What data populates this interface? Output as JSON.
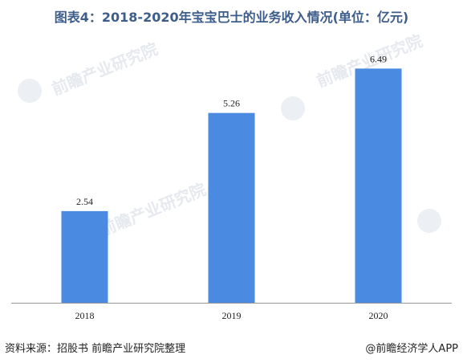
{
  "title": "图表4：2018-2020年宝宝巴士的业务收入情况(单位：亿元)",
  "footer": {
    "source": "资料来源：招股书 前瞻产业研究院整理",
    "brand": "@前瞻经济学人APP"
  },
  "watermark_text": "前瞻产业研究院",
  "colors": {
    "bar": "#4a8ae0",
    "title": "#3d5d8a",
    "axis": "#999999"
  },
  "chart_data": {
    "type": "bar",
    "categories": [
      "2018",
      "2019",
      "2020"
    ],
    "values": [
      2.54,
      5.26,
      6.49
    ],
    "title": "图表4：2018-2020年宝宝巴士的业务收入情况(单位：亿元)",
    "xlabel": "",
    "ylabel": "",
    "ylim": [
      0,
      7.5
    ],
    "grid": false,
    "legend": "none"
  }
}
